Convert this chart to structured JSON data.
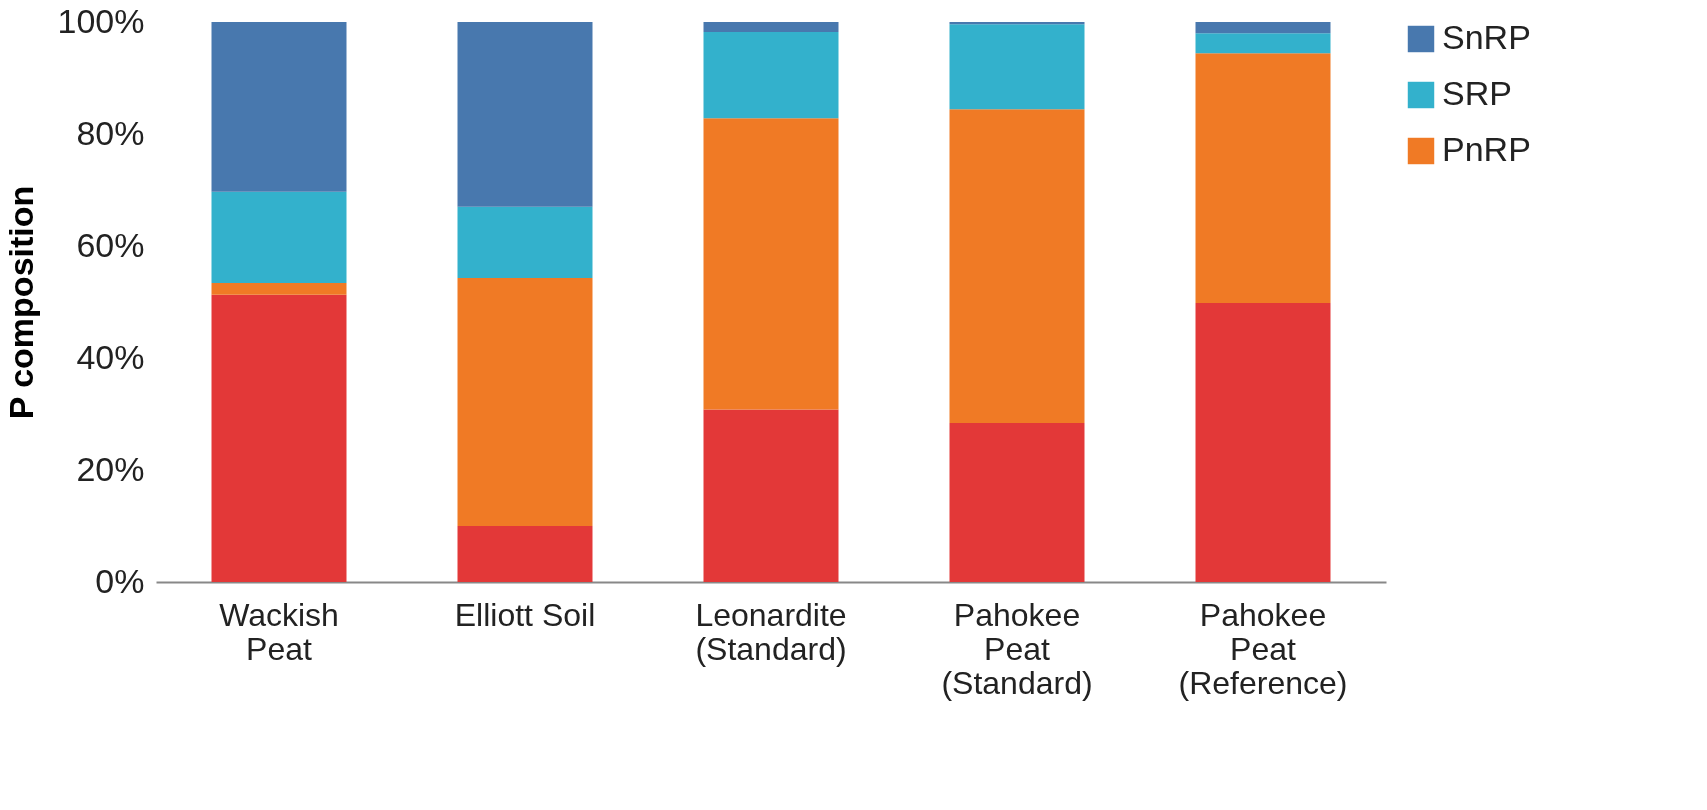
{
  "chart_data": {
    "type": "bar",
    "stacked": true,
    "ylabel": "P composition",
    "categories": [
      "Wackish\nPeat",
      "Elliott Soil",
      "Leonardite\n(Standard)",
      "Pahokee\nPeat\n(Standard)",
      "Pahokee\nPeat\n(Reference)"
    ],
    "series": [
      {
        "color": "#e33838",
        "values": [
          51.3,
          10.0,
          30.8,
          28.4,
          49.8
        ]
      },
      {
        "name": "PnRP",
        "color": "#f07a25",
        "values": [
          2.1,
          44.3,
          52.0,
          56.0,
          44.6
        ]
      },
      {
        "name": "SRP",
        "color": "#33b1cc",
        "values": [
          16.3,
          12.7,
          15.4,
          15.2,
          3.6
        ]
      },
      {
        "name": "SnRP",
        "color": "#4878ae",
        "values": [
          30.3,
          33.0,
          1.8,
          0.4,
          2.0
        ]
      }
    ],
    "ylim": [
      0,
      100
    ],
    "yticks": [
      {
        "value": 0,
        "label": "0%"
      },
      {
        "value": 20,
        "label": "20%"
      },
      {
        "value": 40,
        "label": "40%"
      },
      {
        "value": 60,
        "label": "60%"
      },
      {
        "value": 80,
        "label": "80%"
      },
      {
        "value": 100,
        "label": "100%"
      }
    ],
    "grid": false,
    "legend": "top right"
  }
}
